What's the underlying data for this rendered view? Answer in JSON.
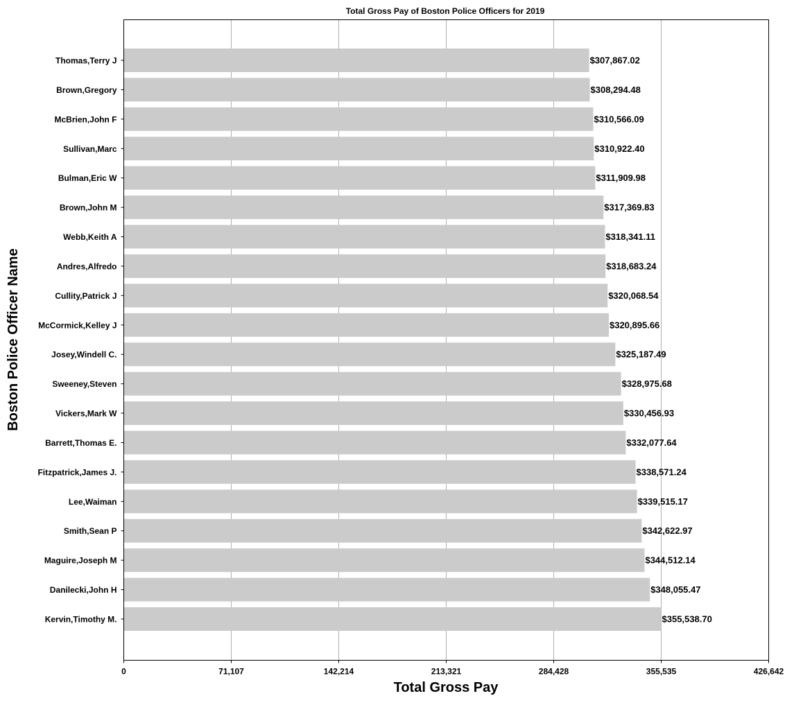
{
  "chart_data": {
    "type": "bar",
    "orientation": "horizontal",
    "title": "Total  Gross Pay of Boston Police Officers for 2019",
    "xlabel": "Total Gross Pay",
    "ylabel": "Boston Police Officer Name",
    "xlim": [
      0,
      426642
    ],
    "x_ticks": [
      0,
      71107,
      142214,
      213321,
      284428,
      355535,
      426642
    ],
    "x_tick_labels": [
      "0",
      "71,107",
      "142,214",
      "213,321",
      "284,428",
      "355,535",
      "426,642"
    ],
    "grid": "vertical",
    "bar_color": "#cbcbcb",
    "categories": [
      "Thomas,Terry J",
      "Brown,Gregory",
      "McBrien,John F",
      "Sullivan,Marc",
      "Bulman,Eric W",
      "Brown,John M",
      "Webb,Keith A",
      "Andres,Alfredo",
      "Cullity,Patrick J",
      "McCormick,Kelley J",
      "Josey,Windell C.",
      "Sweeney,Steven",
      "Vickers,Mark W",
      "Barrett,Thomas E.",
      "Fitzpatrick,James J.",
      "Lee,Waiman",
      "Smith,Sean P",
      "Maguire,Joseph M",
      "Danilecki,John H",
      "Kervin,Timothy M."
    ],
    "values": [
      307867.02,
      308294.48,
      310566.09,
      310922.4,
      311909.98,
      317369.83,
      318341.11,
      318683.24,
      320068.54,
      320895.66,
      325187.49,
      328975.68,
      330456.93,
      332077.64,
      338571.24,
      339515.17,
      342622.97,
      344512.14,
      348055.47,
      355538.7
    ],
    "value_labels": [
      "$307,867.02",
      "$308,294.48",
      "$310,566.09",
      "$310,922.40",
      "$311,909.98",
      "$317,369.83",
      "$318,341.11",
      "$318,683.24",
      "$320,068.54",
      "$320,895.66",
      "$325,187.49",
      "$328,975.68",
      "$330,456.93",
      "$332,077.64",
      "$338,571.24",
      "$339,515.17",
      "$342,622.97",
      "$344,512.14",
      "$348,055.47",
      "$355,538.70"
    ]
  }
}
